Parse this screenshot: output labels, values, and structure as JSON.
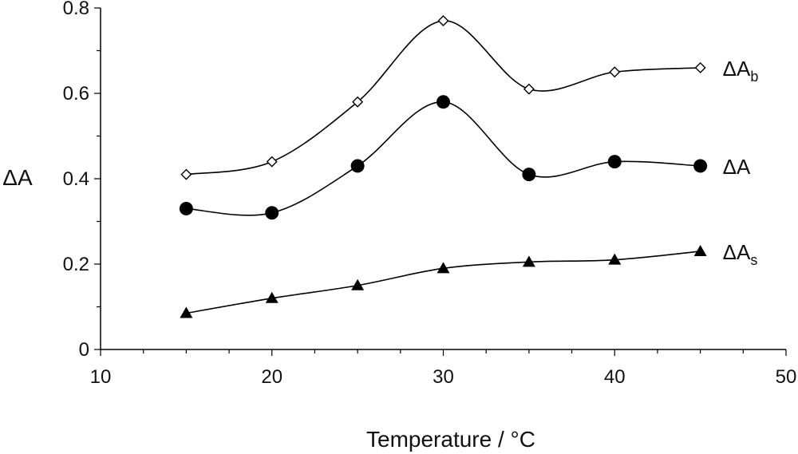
{
  "chart_data": {
    "type": "line",
    "xlabel": "Temperature / °C",
    "ylabel": "ΔA",
    "xlim": [
      10,
      50
    ],
    "ylim": [
      0,
      0.8
    ],
    "xticks": [
      "10",
      "20",
      "30",
      "40",
      "50"
    ],
    "yticks": [
      "0",
      "0.2",
      "0.4",
      "0.6",
      "0.8"
    ],
    "x": [
      15,
      20,
      25,
      30,
      35,
      40,
      45
    ],
    "grid": false,
    "smoothed": true,
    "series": [
      {
        "name": "ΔAb",
        "label_main": "ΔA",
        "label_sub": "b",
        "marker": "open-diamond",
        "values": [
          0.41,
          0.44,
          0.58,
          0.77,
          0.61,
          0.65,
          0.66
        ]
      },
      {
        "name": "ΔA",
        "label_main": "ΔA",
        "label_sub": "",
        "marker": "filled-circle",
        "values": [
          0.33,
          0.32,
          0.43,
          0.58,
          0.41,
          0.44,
          0.43
        ]
      },
      {
        "name": "ΔAs",
        "label_main": "ΔA",
        "label_sub": "s",
        "marker": "filled-triangle",
        "values": [
          0.085,
          0.12,
          0.15,
          0.19,
          0.205,
          0.21,
          0.23
        ]
      }
    ],
    "colors": {
      "line": "#000000",
      "marker": "#000000",
      "axis": "#000000"
    }
  }
}
